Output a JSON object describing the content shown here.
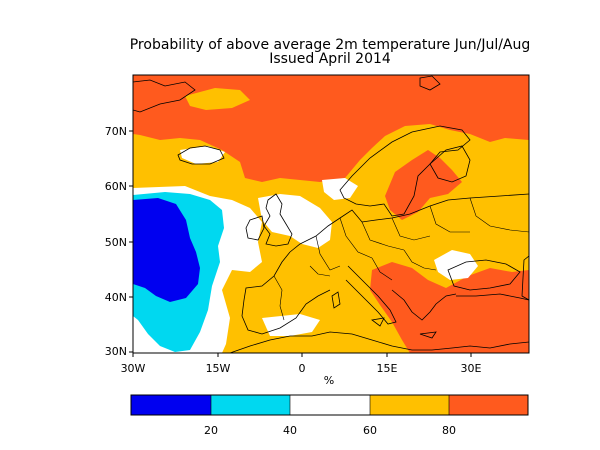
{
  "title": "Probability of above average 2m temperature Jun/Jul/Aug",
  "subtitle": "Issued April 2014",
  "map": {
    "lon_range": [
      -30,
      42
    ],
    "lat_range": [
      30,
      80
    ],
    "lat_ticks": [
      "70N",
      "60N",
      "50N",
      "40N",
      "30N"
    ],
    "lon_ticks": [
      "30W",
      "15W",
      "0",
      "15E",
      "30E"
    ],
    "unit_label": "%"
  },
  "colorbar": {
    "bins": [
      {
        "range": "0-20",
        "color": "#0000f0"
      },
      {
        "range": "20-40",
        "color": "#00d8f0"
      },
      {
        "range": "40-60",
        "color": "#ffffff"
      },
      {
        "range": "60-80",
        "color": "#ffc000"
      },
      {
        "range": "80-100",
        "color": "#ff5a1e"
      }
    ],
    "tick_labels": [
      "20",
      "40",
      "60",
      "80"
    ]
  },
  "colors": {
    "prob_0_20": "#0000f0",
    "prob_20_40": "#00d8f0",
    "prob_40_60": "#ffffff",
    "prob_60_80": "#ffc000",
    "prob_80_100": "#ff5a1e",
    "coastline": "#000000"
  }
}
